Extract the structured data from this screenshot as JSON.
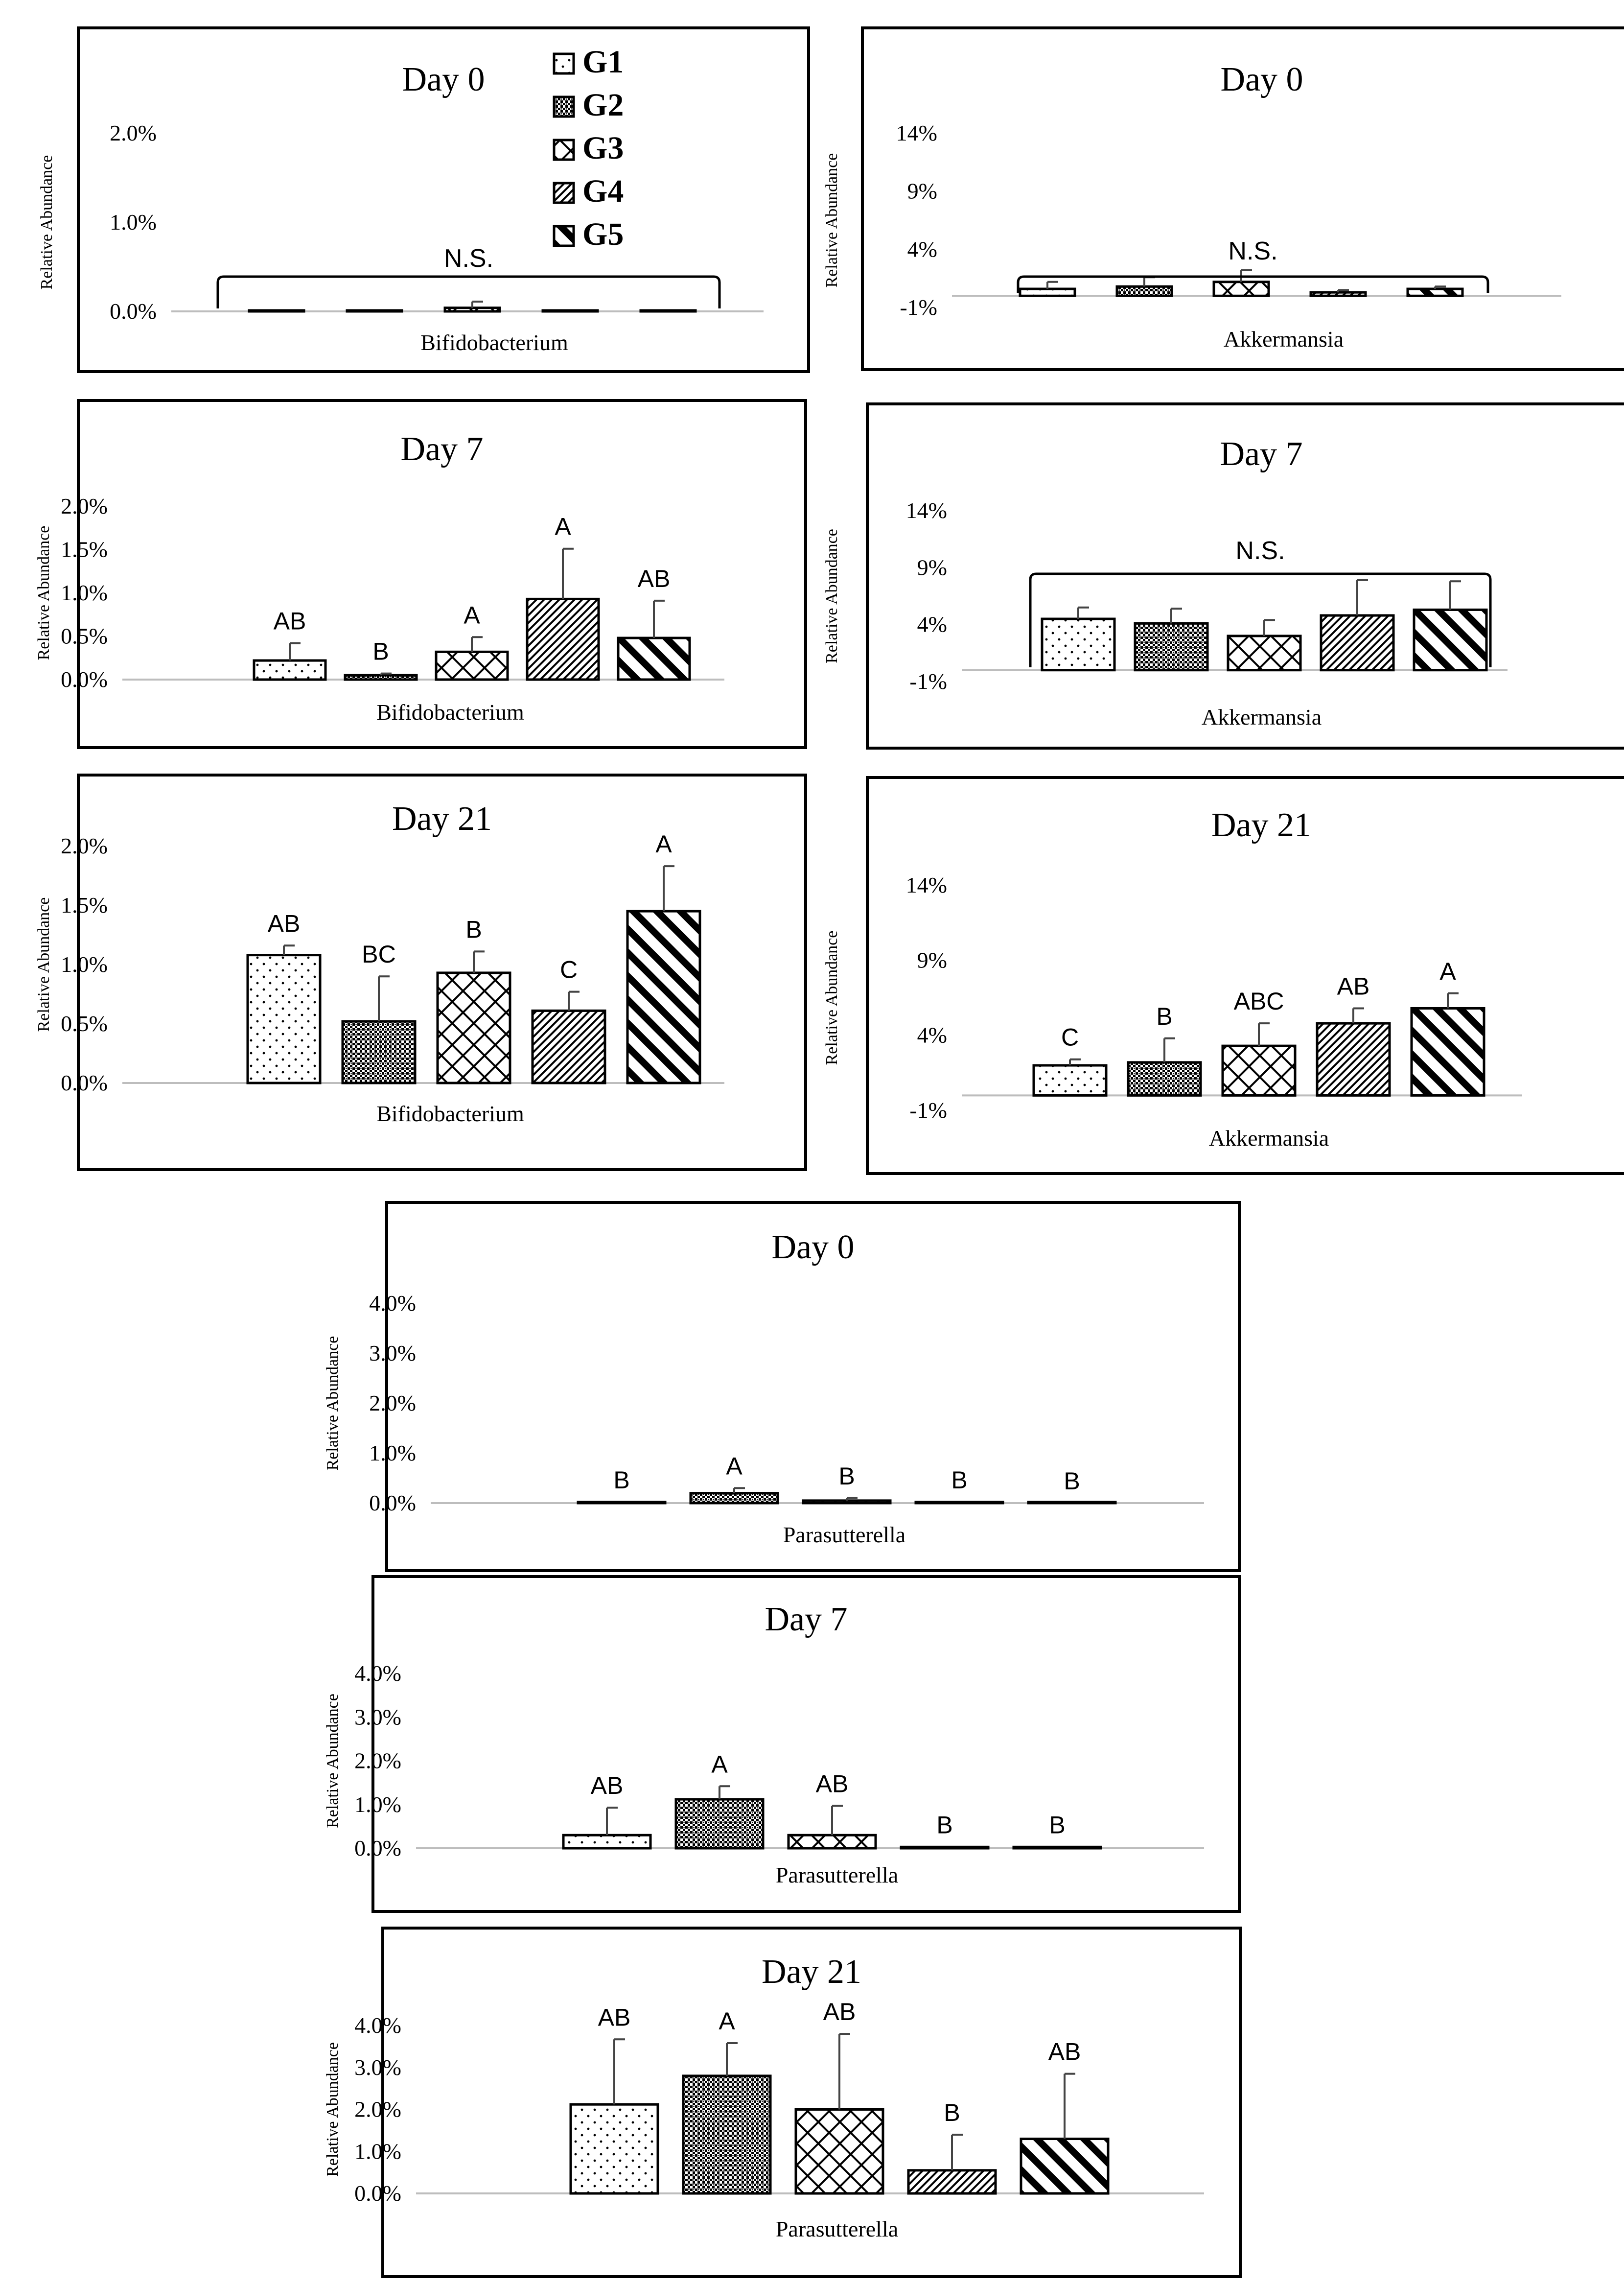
{
  "legend": {
    "items": [
      {
        "label": "G1",
        "pattern": "blank"
      },
      {
        "label": "G2",
        "pattern": "checker"
      },
      {
        "label": "G3",
        "pattern": "lattice"
      },
      {
        "label": "G4",
        "pattern": "fine-diagonal"
      },
      {
        "label": "G5",
        "pattern": "bold-diagonal"
      }
    ]
  },
  "chart_data": [
    {
      "id": "bifido-d0",
      "type": "bar",
      "title": "Day 0",
      "xlabel": "Bifidobacterium",
      "ylabel": "Relative Abundance",
      "ylim": [
        0,
        2
      ],
      "yticks": [
        "0.0%",
        "1.0%",
        "2.0%"
      ],
      "ytick_values": [
        0,
        1,
        2
      ],
      "categories": [
        "G1",
        "G2",
        "G3",
        "G4",
        "G5"
      ],
      "values": [
        0.01,
        0.01,
        0.04,
        0.01,
        0.01
      ],
      "errors": [
        0,
        0,
        0.07,
        0,
        0
      ],
      "letters": [
        "",
        "",
        "",
        "",
        ""
      ],
      "group_label": "N.S."
    },
    {
      "id": "akk-d0",
      "type": "bar",
      "title": "Day 0",
      "xlabel": "Akkermansia",
      "ylabel": "Relative Abundance",
      "ylim": [
        -1,
        14
      ],
      "yticks": [
        "-1%",
        "4%",
        "9%",
        "14%"
      ],
      "ytick_values": [
        -1,
        4,
        9,
        14
      ],
      "categories": [
        "G1",
        "G2",
        "G3",
        "G4",
        "G5"
      ],
      "values": [
        0.6,
        0.8,
        1.2,
        0.3,
        0.6
      ],
      "errors": [
        0.6,
        0.8,
        1.0,
        0.2,
        0.2
      ],
      "letters": [
        "",
        "",
        "",
        "",
        ""
      ],
      "group_label": "N.S."
    },
    {
      "id": "bifido-d7",
      "type": "bar",
      "title": "Day 7",
      "xlabel": "Bifidobacterium",
      "ylabel": "Relative Abundance",
      "ylim": [
        0,
        2
      ],
      "yticks": [
        "0.0%",
        "0.5%",
        "1.0%",
        "1.5%",
        "2.0%"
      ],
      "ytick_values": [
        0,
        0.5,
        1,
        1.5,
        2
      ],
      "categories": [
        "G1",
        "G2",
        "G3",
        "G4",
        "G5"
      ],
      "values": [
        0.22,
        0.05,
        0.32,
        0.93,
        0.48
      ],
      "errors": [
        0.2,
        0.02,
        0.17,
        0.58,
        0.43
      ],
      "letters": [
        "AB",
        "B",
        "A",
        "A",
        "AB"
      ],
      "group_label": ""
    },
    {
      "id": "akk-d7",
      "type": "bar",
      "title": "Day 7",
      "xlabel": "Akkermansia",
      "ylabel": "Relative Abundance",
      "ylim": [
        -1,
        14
      ],
      "yticks": [
        "-1%",
        "4%",
        "9%",
        "14%"
      ],
      "ytick_values": [
        -1,
        4,
        9,
        14
      ],
      "categories": [
        "G1",
        "G2",
        "G3",
        "G4",
        "G5"
      ],
      "values": [
        4.5,
        4.1,
        3.0,
        4.8,
        5.3
      ],
      "errors": [
        1.0,
        1.3,
        1.4,
        3.1,
        2.5
      ],
      "letters": [
        "",
        "",
        "",
        "",
        ""
      ],
      "group_label": "N.S."
    },
    {
      "id": "bifido-d21",
      "type": "bar",
      "title": "Day 21",
      "xlabel": "Bifidobacterium",
      "ylabel": "Relative Abundance",
      "ylim": [
        0,
        2
      ],
      "yticks": [
        "0.0%",
        "0.5%",
        "1.0%",
        "1.5%",
        "2.0%"
      ],
      "ytick_values": [
        0,
        0.5,
        1,
        1.5,
        2
      ],
      "categories": [
        "G1",
        "G2",
        "G3",
        "G4",
        "G5"
      ],
      "values": [
        1.08,
        0.52,
        0.93,
        0.61,
        1.45
      ],
      "errors": [
        0.08,
        0.38,
        0.18,
        0.16,
        0.38
      ],
      "letters": [
        "AB",
        "BC",
        "B",
        "C",
        "A"
      ],
      "group_label": ""
    },
    {
      "id": "akk-d21",
      "type": "bar",
      "title": "Day 21",
      "xlabel": "Akkermansia",
      "ylabel": "Relative Abundance",
      "ylim": [
        -1,
        14
      ],
      "yticks": [
        "-1%",
        "4%",
        "9%",
        "14%"
      ],
      "ytick_values": [
        -1,
        4,
        9,
        14
      ],
      "categories": [
        "G1",
        "G2",
        "G3",
        "G4",
        "G5"
      ],
      "values": [
        2.0,
        2.2,
        3.3,
        4.8,
        5.8
      ],
      "errors": [
        0.4,
        1.6,
        1.5,
        1.0,
        1.0
      ],
      "letters": [
        "C",
        "B",
        "ABC",
        "AB",
        "A"
      ],
      "group_label": ""
    },
    {
      "id": "para-d0",
      "type": "bar",
      "title": "Day 0",
      "xlabel": "Parasutterella",
      "ylabel": "Relative Abundance",
      "ylim": [
        0,
        4
      ],
      "yticks": [
        "0.0%",
        "1.0%",
        "2.0%",
        "3.0%",
        "4.0%"
      ],
      "ytick_values": [
        0,
        1,
        2,
        3,
        4
      ],
      "categories": [
        "G1",
        "G2",
        "G3",
        "G4",
        "G5"
      ],
      "values": [
        0.02,
        0.2,
        0.05,
        0.02,
        0.0
      ],
      "errors": [
        0,
        0.1,
        0.05,
        0,
        0
      ],
      "letters": [
        "B",
        "A",
        "B",
        "B",
        "B"
      ],
      "group_label": ""
    },
    {
      "id": "para-d7",
      "type": "bar",
      "title": "Day 7",
      "xlabel": "Parasutterella",
      "ylabel": "Relative Abundance",
      "ylim": [
        0,
        4
      ],
      "yticks": [
        "0.0%",
        "1.0%",
        "2.0%",
        "3.0%",
        "4.0%"
      ],
      "ytick_values": [
        0,
        1,
        2,
        3,
        4
      ],
      "categories": [
        "G1",
        "G2",
        "G3",
        "G4",
        "G5"
      ],
      "values": [
        0.3,
        1.12,
        0.3,
        0.03,
        0.03
      ],
      "errors": [
        0.63,
        0.3,
        0.67,
        0,
        0
      ],
      "letters": [
        "AB",
        "A",
        "AB",
        "B",
        "B"
      ],
      "group_label": ""
    },
    {
      "id": "para-d21",
      "type": "bar",
      "title": "Day 21",
      "xlabel": "Parasutterella",
      "ylabel": "Relative Abundance",
      "ylim": [
        0,
        4
      ],
      "yticks": [
        "0.0%",
        "1.0%",
        "2.0%",
        "3.0%",
        "4.0%"
      ],
      "ytick_values": [
        0,
        1,
        2,
        3,
        4
      ],
      "categories": [
        "G1",
        "G2",
        "G3",
        "G4",
        "G5"
      ],
      "values": [
        2.12,
        2.8,
        2.0,
        0.55,
        1.3
      ],
      "errors": [
        1.55,
        0.78,
        1.8,
        0.85,
        1.55
      ],
      "letters": [
        "AB",
        "A",
        "AB",
        "B",
        "AB"
      ],
      "group_label": ""
    }
  ]
}
